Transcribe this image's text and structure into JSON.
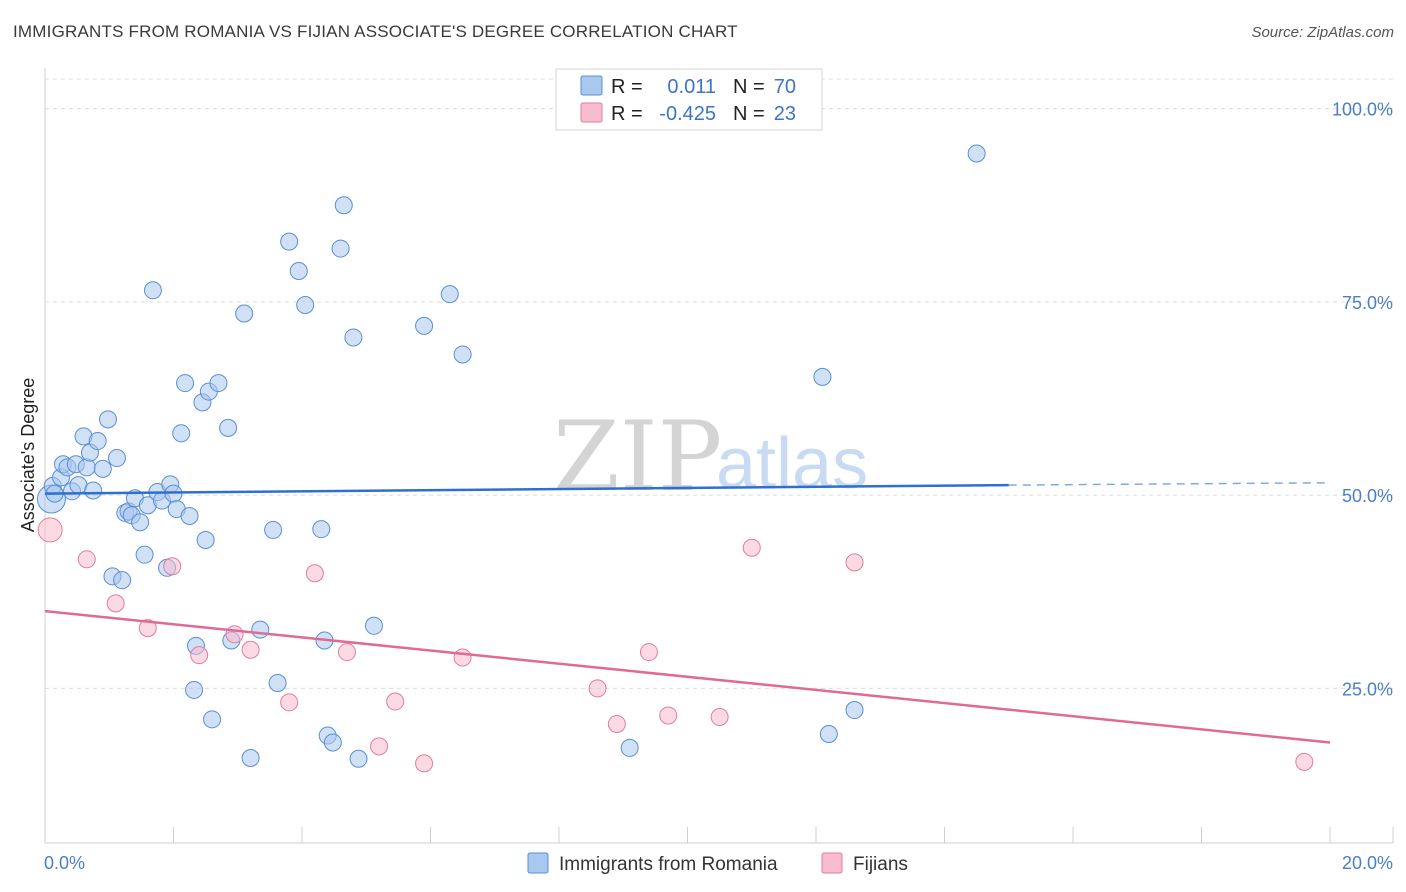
{
  "title": "IMMIGRANTS FROM ROMANIA VS FIJIAN ASSOCIATE'S DEGREE CORRELATION CHART",
  "source": "Source: ZipAtlas.com",
  "watermark": {
    "zip": "ZIP",
    "atlas": "atlas"
  },
  "chart_data": {
    "type": "scatter",
    "ylabel": "Associate's Degree",
    "xlim": [
      0,
      20
    ],
    "ylim": [
      5,
      105
    ],
    "x_tick_labels": [
      {
        "value": 0,
        "label": "0.0%"
      },
      {
        "value": 20,
        "label": "20.0%"
      }
    ],
    "y_tick_labels": [
      {
        "value": 100,
        "label": "100.0%"
      },
      {
        "value": 75,
        "label": "75.0%"
      },
      {
        "value": 50,
        "label": "50.0%"
      },
      {
        "value": 25,
        "label": "25.0%"
      }
    ],
    "grid": true,
    "legend_placement": "top-center",
    "series": [
      {
        "name": "Immigrants from Romania",
        "color": "#a9c8ee",
        "stroke": "#5a8fd4",
        "line_color": "#2f6fd0",
        "R": "0.011",
        "N": "70",
        "trend": {
          "x0": 0,
          "y0": 50.2,
          "x1": 15,
          "y1": 51.3,
          "dash_to_x": 20,
          "dash_to_y": 51.6
        },
        "points": [
          [
            0.1,
            49.5
          ],
          [
            0.12,
            51.2
          ],
          [
            0.15,
            50.2
          ],
          [
            0.25,
            52.3
          ],
          [
            0.28,
            54.0
          ],
          [
            0.35,
            53.6
          ],
          [
            0.42,
            50.5
          ],
          [
            0.48,
            54.0
          ],
          [
            0.52,
            51.3
          ],
          [
            0.6,
            57.6
          ],
          [
            0.65,
            53.6
          ],
          [
            0.7,
            55.5
          ],
          [
            0.75,
            50.6
          ],
          [
            0.82,
            57.0
          ],
          [
            0.9,
            53.4
          ],
          [
            0.98,
            59.8
          ],
          [
            1.05,
            39.5
          ],
          [
            1.12,
            54.8
          ],
          [
            1.2,
            39.0
          ],
          [
            1.25,
            47.7
          ],
          [
            1.3,
            47.9
          ],
          [
            1.35,
            47.4
          ],
          [
            1.4,
            49.6
          ],
          [
            1.48,
            46.5
          ],
          [
            1.55,
            42.3
          ],
          [
            1.6,
            48.7
          ],
          [
            1.68,
            76.5
          ],
          [
            1.75,
            50.4
          ],
          [
            1.82,
            49.3
          ],
          [
            1.9,
            40.6
          ],
          [
            1.95,
            51.4
          ],
          [
            2.0,
            50.2
          ],
          [
            2.05,
            48.2
          ],
          [
            2.12,
            58.0
          ],
          [
            2.18,
            64.5
          ],
          [
            2.25,
            47.3
          ],
          [
            2.35,
            30.5
          ],
          [
            2.32,
            24.8
          ],
          [
            2.45,
            62.0
          ],
          [
            2.5,
            44.2
          ],
          [
            2.55,
            63.4
          ],
          [
            2.6,
            21.0
          ],
          [
            2.7,
            64.5
          ],
          [
            2.85,
            58.7
          ],
          [
            2.9,
            31.2
          ],
          [
            3.1,
            73.5
          ],
          [
            3.2,
            16.0
          ],
          [
            3.35,
            32.6
          ],
          [
            3.55,
            45.5
          ],
          [
            3.62,
            25.7
          ],
          [
            3.8,
            82.8
          ],
          [
            3.95,
            79.0
          ],
          [
            4.05,
            74.6
          ],
          [
            4.3,
            45.6
          ],
          [
            4.35,
            31.2
          ],
          [
            4.4,
            18.9
          ],
          [
            4.48,
            18.0
          ],
          [
            4.6,
            81.9
          ],
          [
            4.65,
            87.5
          ],
          [
            4.8,
            70.4
          ],
          [
            4.88,
            15.9
          ],
          [
            5.12,
            33.1
          ],
          [
            5.9,
            71.9
          ],
          [
            6.3,
            76.0
          ],
          [
            6.5,
            68.2
          ],
          [
            9.1,
            17.3
          ],
          [
            12.1,
            65.3
          ],
          [
            12.2,
            19.1
          ],
          [
            12.6,
            22.2
          ],
          [
            14.5,
            94.2
          ]
        ]
      },
      {
        "name": "Fijians",
        "color": "#f7bccd",
        "stroke": "#e07e9e",
        "line_color": "#e06a96",
        "R": "-0.425",
        "N": "23",
        "trend": {
          "x0": 0,
          "y0": 35.0,
          "x1": 20,
          "y1": 18.0
        },
        "points": [
          [
            0.08,
            45.5
          ],
          [
            0.65,
            41.7
          ],
          [
            1.1,
            36.0
          ],
          [
            1.6,
            32.8
          ],
          [
            1.98,
            40.8
          ],
          [
            2.4,
            29.3
          ],
          [
            2.95,
            32.0
          ],
          [
            3.2,
            30.0
          ],
          [
            3.8,
            23.2
          ],
          [
            4.2,
            39.9
          ],
          [
            4.7,
            29.7
          ],
          [
            5.2,
            17.5
          ],
          [
            5.45,
            23.3
          ],
          [
            5.9,
            15.3
          ],
          [
            6.5,
            29.0
          ],
          [
            8.6,
            25.0
          ],
          [
            8.9,
            20.4
          ],
          [
            9.4,
            29.7
          ],
          [
            9.7,
            21.5
          ],
          [
            10.5,
            21.3
          ],
          [
            11.0,
            43.2
          ],
          [
            12.6,
            41.3
          ],
          [
            19.6,
            15.5
          ]
        ]
      }
    ]
  }
}
